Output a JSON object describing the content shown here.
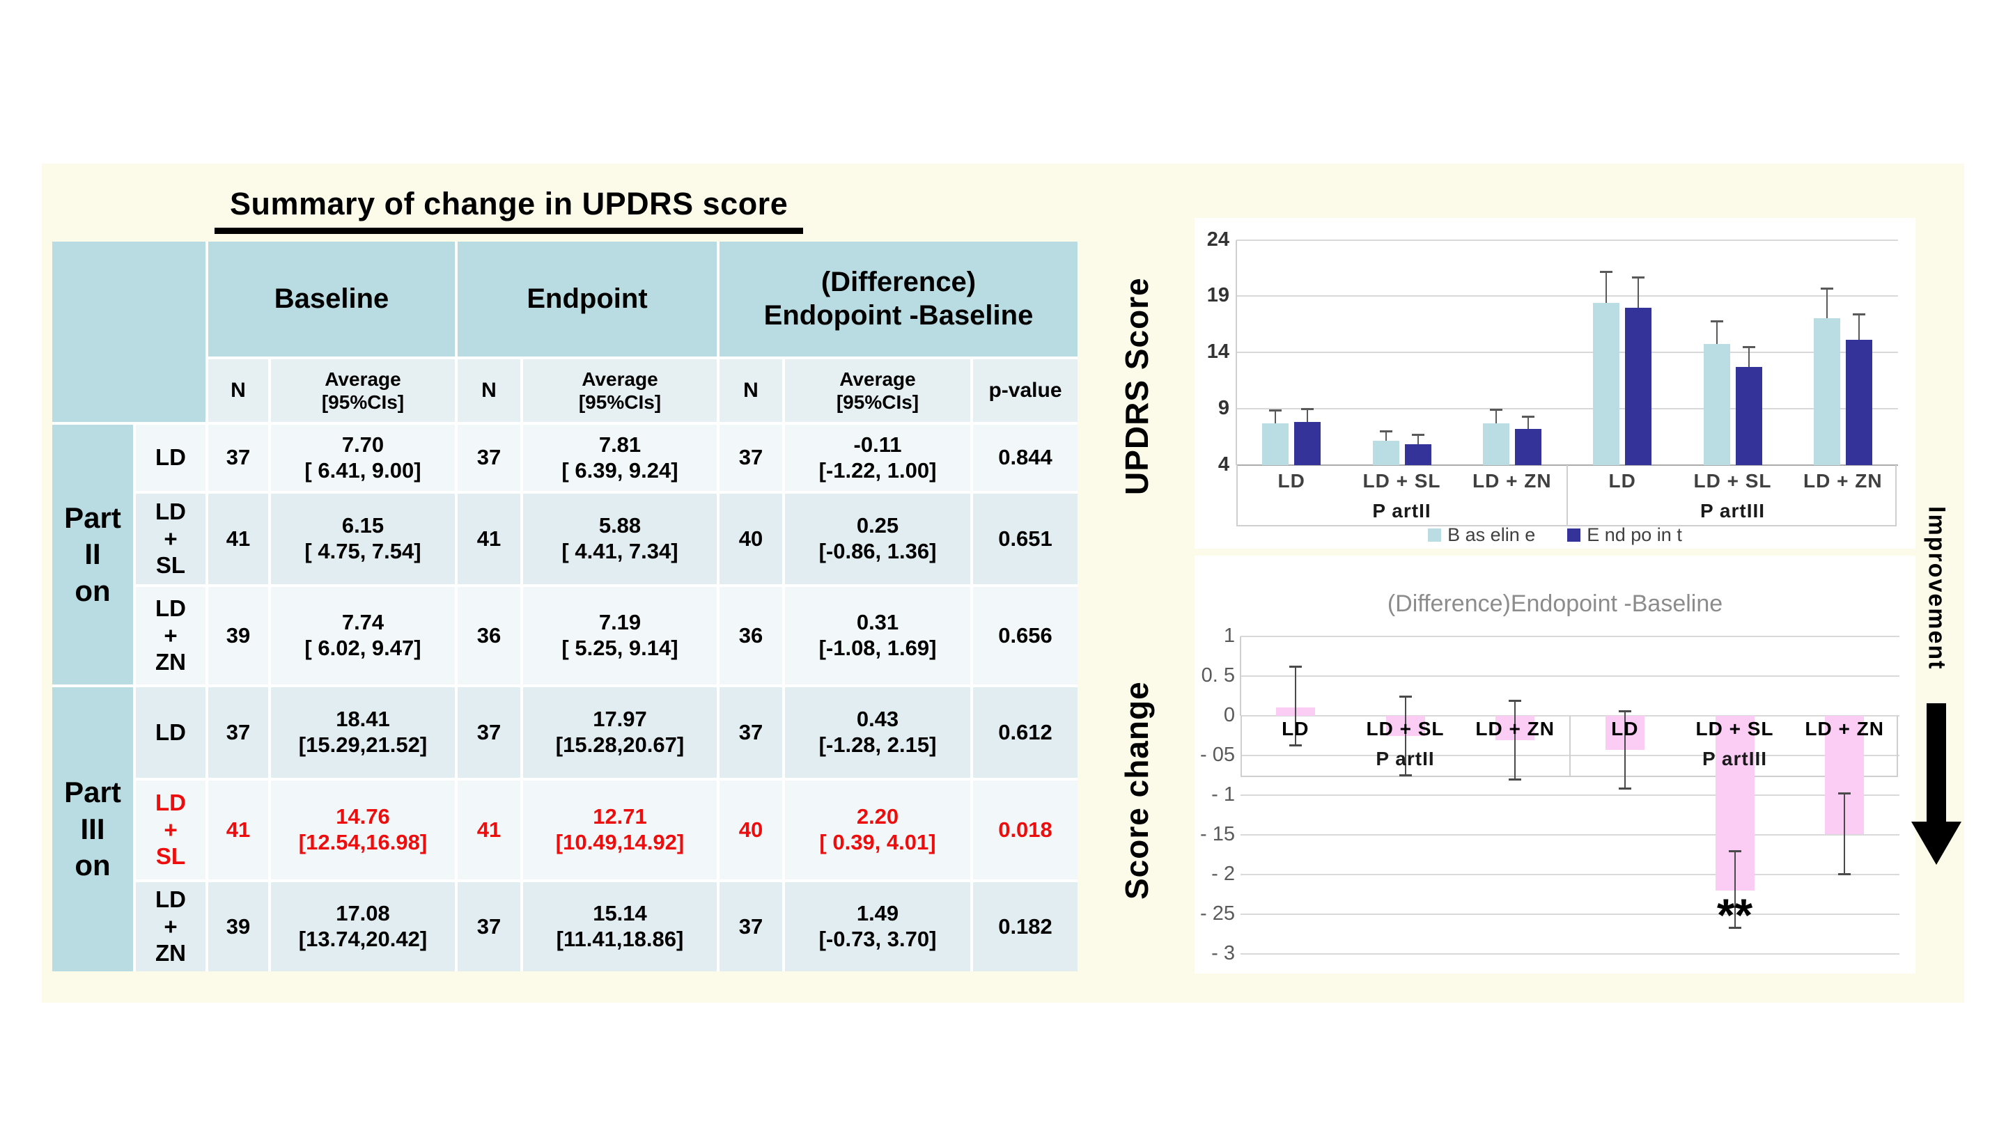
{
  "slide": {
    "title": "Summary of change in UPDRS score",
    "improvement_label": "Improvement"
  },
  "colors": {
    "slide_background": "#FCFAE9",
    "table_header_teal": "#B8DCE2",
    "row_stripe_light": "#F2F8F9",
    "row_stripe_dark": "#E2EDF1",
    "highlight_red": "#ED0D0D",
    "baseline_bar": "#BADDE4",
    "endpoint_bar": "#34339A",
    "difference_bar": "#FBCDF4",
    "gridline_gray": "#D9D9D9"
  },
  "table": {
    "group_headers": [
      "Baseline",
      "Endpoint",
      "(Difference)\nEndopoint -Baseline"
    ],
    "sub_n": "N",
    "sub_avg": "Average\n[95%CIs]",
    "sub_p": "p-value",
    "section1_label": "Part II\non",
    "section2_label": "Part\nIII\non",
    "rows": [
      {
        "treatment": "LD",
        "n_base": "37",
        "avg_base": "7.70\n[ 6.41, 9.00]",
        "n_end": "37",
        "avg_end": "7.81\n[ 6.39, 9.24]",
        "n_diff": "37",
        "avg_diff": "-0.11\n[-1.22, 1.00]",
        "p_value": "0.844"
      },
      {
        "treatment": "LD\n+\nSL",
        "n_base": "41",
        "avg_base": "6.15\n[ 4.75, 7.54]",
        "n_end": "41",
        "avg_end": "5.88\n[ 4.41, 7.34]",
        "n_diff": "40",
        "avg_diff": "0.25\n[-0.86, 1.36]",
        "p_value": "0.651"
      },
      {
        "treatment": "LD\n+\nZN",
        "n_base": "39",
        "avg_base": "7.74\n[ 6.02, 9.47]",
        "n_end": "36",
        "avg_end": "7.19\n[ 5.25, 9.14]",
        "n_diff": "36",
        "avg_diff": "0.31\n[-1.08, 1.69]",
        "p_value": "0.656"
      },
      {
        "treatment": "LD",
        "n_base": "37",
        "avg_base": "18.41\n[15.29,21.52]",
        "n_end": "37",
        "avg_end": "17.97\n[15.28,20.67]",
        "n_diff": "37",
        "avg_diff": "0.43\n[-1.28, 2.15]",
        "p_value": "0.612"
      },
      {
        "treatment": "LD\n+\nSL",
        "n_base": "41",
        "avg_base": "14.76\n[12.54,16.98]",
        "n_end": "41",
        "avg_end": "12.71\n[10.49,14.92]",
        "n_diff": "40",
        "avg_diff": "2.20\n[ 0.39, 4.01]",
        "p_value": "0.018"
      },
      {
        "treatment": "LD\n+\nZN",
        "n_base": "39",
        "avg_base": "17.08\n[13.74,20.42]",
        "n_end": "37",
        "avg_end": "15.14\n[11.41,18.86]",
        "n_diff": "37",
        "avg_diff": "1.49\n[-0.73, 3.70]",
        "p_value": "0.182"
      }
    ]
  },
  "chart_data": [
    {
      "type": "bar",
      "title": "",
      "ylabel": "UPDRS Score",
      "ymin": 4,
      "ymax": 25.4,
      "axis_value": 4,
      "ylim": [
        4,
        24
      ],
      "grid": true,
      "legend_position": "bottom",
      "yticks": [
        {
          "v": 24,
          "label": "24"
        },
        {
          "v": 19,
          "label": "19"
        },
        {
          "v": 14,
          "label": "14"
        },
        {
          "v": 9,
          "label": "9"
        },
        {
          "v": 4,
          "label": "4"
        }
      ],
      "groups": [
        {
          "label": "P artII",
          "categories": [
            "LD",
            "LD + SL",
            "LD + ZN"
          ]
        },
        {
          "label": "P artIII",
          "categories": [
            "LD",
            "LD + SL",
            "LD + ZN"
          ]
        }
      ],
      "series": [
        {
          "name": "B as elin e",
          "color": "#BADDE4",
          "values": [
            7.7,
            6.15,
            7.74,
            18.41,
            14.76,
            17.08
          ],
          "err_top": [
            8.9,
            7.0,
            8.95,
            21.2,
            16.8,
            19.7
          ]
        },
        {
          "name": "E nd po in t",
          "color": "#34339A",
          "values": [
            7.81,
            5.88,
            7.19,
            17.97,
            12.71,
            15.14
          ],
          "err_top": [
            9.0,
            6.7,
            8.3,
            20.7,
            14.5,
            17.4
          ]
        }
      ]
    },
    {
      "type": "bar",
      "title": "(Difference)Endopoint -Baseline",
      "ylabel": "Score change",
      "ymin": -3.2,
      "ymax": 1.15,
      "axis_value": 0,
      "ylim": [
        -3,
        1
      ],
      "grid": true,
      "legend_position": "none",
      "yticks": [
        {
          "v": 1,
          "label": "1"
        },
        {
          "v": 0.5,
          "label": "0. 5"
        },
        {
          "v": 0,
          "label": "0"
        },
        {
          "v": -0.5,
          "label": "- 05"
        },
        {
          "v": -1,
          "label": "- 1"
        },
        {
          "v": -1.5,
          "label": "- 15"
        },
        {
          "v": -2,
          "label": "- 2"
        },
        {
          "v": -2.5,
          "label": "- 25"
        },
        {
          "v": -3,
          "label": "- 3"
        }
      ],
      "groups": [
        {
          "label": "P artII",
          "categories": [
            "LD",
            "LD + SL",
            "LD + ZN"
          ]
        },
        {
          "label": "P artIII",
          "categories": [
            "LD",
            "LD + SL",
            "LD + ZN"
          ]
        }
      ],
      "series": [
        {
          "name": "Difference",
          "color": "#FBCDF4",
          "values": [
            0.11,
            -0.25,
            -0.31,
            -0.43,
            -2.2,
            -1.49
          ],
          "err_hi": [
            0.62,
            0.25,
            0.19,
            0.06,
            -1.7,
            -0.97
          ],
          "err_lo": [
            -0.38,
            -0.75,
            -0.81,
            -0.92,
            -2.67,
            -2.0
          ]
        }
      ],
      "annotation": {
        "text": "**",
        "slot": 4,
        "v": -2.5
      }
    }
  ]
}
